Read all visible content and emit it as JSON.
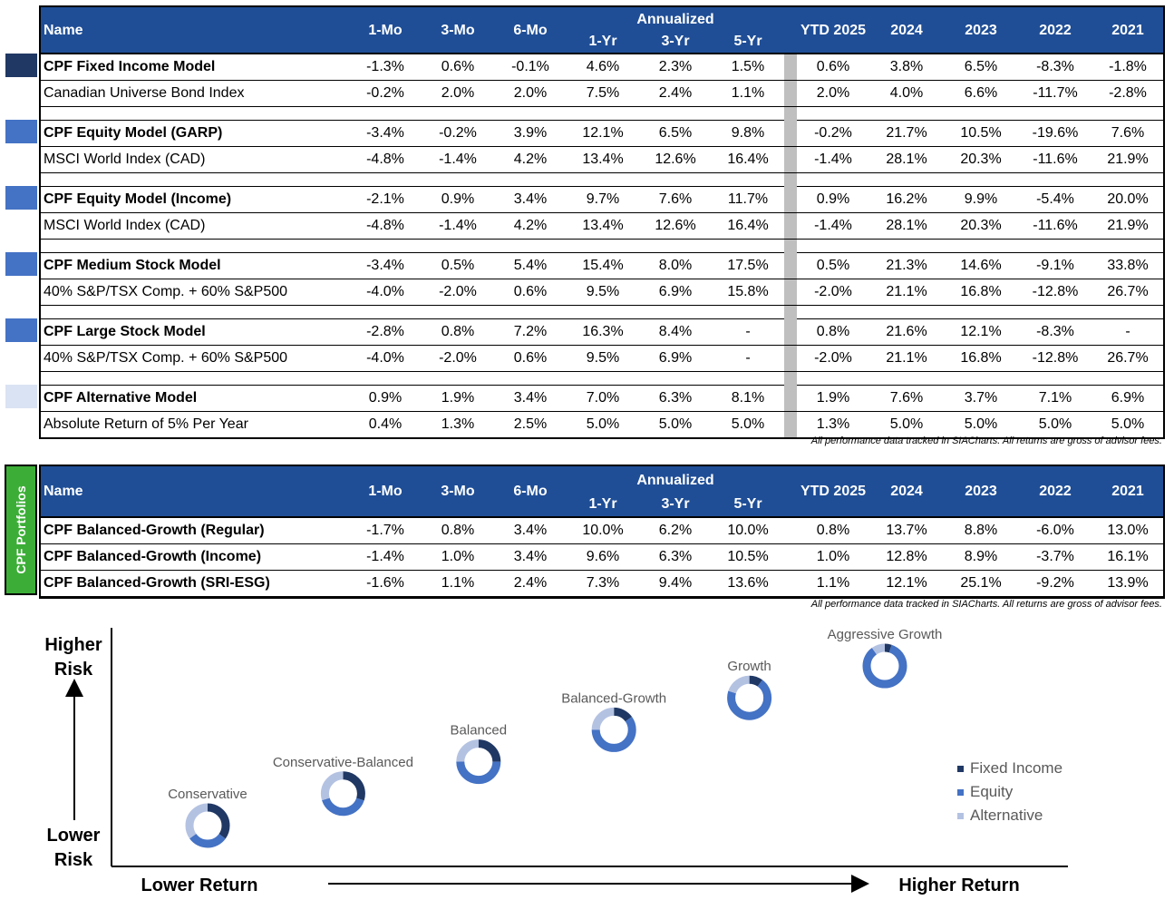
{
  "colors": {
    "header_bg": "#1f4e96",
    "sidebar_bg": "#3cae37",
    "fixed_income": "#203864",
    "equity": "#4472c4",
    "alternative": "#b4c2e2",
    "alternative_light": "#dae3f3"
  },
  "columns": {
    "name": "Name",
    "m1": "1-Mo",
    "m3": "3-Mo",
    "m6": "6-Mo",
    "annualized": "Annualized",
    "y1": "1-Yr",
    "y3": "3-Yr",
    "y5": "5-Yr",
    "ytd": "YTD 2025",
    "c2024": "2024",
    "c2023": "2023",
    "c2022": "2022",
    "c2021": "2021"
  },
  "models_table": {
    "groups": [
      {
        "swatch_color": "#203864",
        "rows": [
          {
            "name": "CPF Fixed Income Model",
            "bold": true,
            "values": [
              "-1.3%",
              "0.6%",
              "-0.1%",
              "4.6%",
              "2.3%",
              "1.5%",
              "0.6%",
              "3.8%",
              "6.5%",
              "-8.3%",
              "-1.8%"
            ]
          },
          {
            "name": "Canadian Universe Bond Index",
            "bold": false,
            "values": [
              "-0.2%",
              "2.0%",
              "2.0%",
              "7.5%",
              "2.4%",
              "1.1%",
              "2.0%",
              "4.0%",
              "6.6%",
              "-11.7%",
              "-2.8%"
            ]
          }
        ]
      },
      {
        "swatch_color": "#4472c4",
        "rows": [
          {
            "name": "CPF Equity Model (GARP)",
            "bold": true,
            "values": [
              "-3.4%",
              "-0.2%",
              "3.9%",
              "12.1%",
              "6.5%",
              "9.8%",
              "-0.2%",
              "21.7%",
              "10.5%",
              "-19.6%",
              "7.6%"
            ]
          },
          {
            "name": "MSCI World Index (CAD)",
            "bold": false,
            "values": [
              "-4.8%",
              "-1.4%",
              "4.2%",
              "13.4%",
              "12.6%",
              "16.4%",
              "-1.4%",
              "28.1%",
              "20.3%",
              "-11.6%",
              "21.9%"
            ]
          }
        ]
      },
      {
        "swatch_color": "#4472c4",
        "rows": [
          {
            "name": "CPF Equity Model (Income)",
            "bold": true,
            "values": [
              "-2.1%",
              "0.9%",
              "3.4%",
              "9.7%",
              "7.6%",
              "11.7%",
              "0.9%",
              "16.2%",
              "9.9%",
              "-5.4%",
              "20.0%"
            ]
          },
          {
            "name": "MSCI World Index (CAD)",
            "bold": false,
            "values": [
              "-4.8%",
              "-1.4%",
              "4.2%",
              "13.4%",
              "12.6%",
              "16.4%",
              "-1.4%",
              "28.1%",
              "20.3%",
              "-11.6%",
              "21.9%"
            ]
          }
        ]
      },
      {
        "swatch_color": "#4472c4",
        "rows": [
          {
            "name": "CPF Medium Stock Model",
            "bold": true,
            "values": [
              "-3.4%",
              "0.5%",
              "5.4%",
              "15.4%",
              "8.0%",
              "17.5%",
              "0.5%",
              "21.3%",
              "14.6%",
              "-9.1%",
              "33.8%"
            ]
          },
          {
            "name": "40% S&P/TSX Comp. + 60% S&P500",
            "bold": false,
            "values": [
              "-4.0%",
              "-2.0%",
              "0.6%",
              "9.5%",
              "6.9%",
              "15.8%",
              "-2.0%",
              "21.1%",
              "16.8%",
              "-12.8%",
              "26.7%"
            ]
          }
        ]
      },
      {
        "swatch_color": "#4472c4",
        "rows": [
          {
            "name": "CPF Large Stock Model",
            "bold": true,
            "values": [
              "-2.8%",
              "0.8%",
              "7.2%",
              "16.3%",
              "8.4%",
              "-",
              "0.8%",
              "21.6%",
              "12.1%",
              "-8.3%",
              "-"
            ]
          },
          {
            "name": "40% S&P/TSX Comp. + 60% S&P500",
            "bold": false,
            "values": [
              "-4.0%",
              "-2.0%",
              "0.6%",
              "9.5%",
              "6.9%",
              "-",
              "-2.0%",
              "21.1%",
              "16.8%",
              "-12.8%",
              "26.7%"
            ]
          }
        ]
      },
      {
        "swatch_color": "#dae3f3",
        "rows": [
          {
            "name": "CPF Alternative Model",
            "bold": true,
            "values": [
              "0.9%",
              "1.9%",
              "3.4%",
              "7.0%",
              "6.3%",
              "8.1%",
              "1.9%",
              "7.6%",
              "3.7%",
              "7.1%",
              "6.9%"
            ]
          },
          {
            "name": "Absolute Return of 5% Per Year",
            "bold": false,
            "values": [
              "0.4%",
              "1.3%",
              "2.5%",
              "5.0%",
              "5.0%",
              "5.0%",
              "1.3%",
              "5.0%",
              "5.0%",
              "5.0%",
              "5.0%"
            ]
          }
        ]
      }
    ],
    "footnote": "All performance data tracked in SIACharts. All returns are gross of advisor fees."
  },
  "portfolios_table": {
    "sidebar_label": "CPF Portfolios",
    "rows": [
      {
        "name": "CPF Balanced-Growth (Regular)",
        "values": [
          "-1.7%",
          "0.8%",
          "3.4%",
          "10.0%",
          "6.2%",
          "10.0%",
          "0.8%",
          "13.7%",
          "8.8%",
          "-6.0%",
          "13.0%"
        ]
      },
      {
        "name": "CPF Balanced-Growth (Income)",
        "values": [
          "-1.4%",
          "1.0%",
          "3.4%",
          "9.6%",
          "6.3%",
          "10.5%",
          "1.0%",
          "12.8%",
          "8.9%",
          "-3.7%",
          "16.1%"
        ]
      },
      {
        "name": "CPF Balanced-Growth (SRI-ESG)",
        "values": [
          "-1.6%",
          "1.1%",
          "2.4%",
          "7.3%",
          "9.4%",
          "13.6%",
          "1.1%",
          "12.1%",
          "25.1%",
          "-9.2%",
          "13.9%"
        ]
      }
    ],
    "footnote": "All performance data tracked in SIACharts. All returns are gross of advisor fees."
  },
  "chart_data": {
    "type": "scatter",
    "title": "",
    "xlabel_low": "Lower Return",
    "xlabel_high": "Higher Return",
    "ylabel_high": "Higher Risk",
    "ylabel_low": "Lower Risk",
    "legend": [
      "Fixed Income",
      "Equity",
      "Alternative"
    ],
    "legend_position": "right",
    "grid": false,
    "points": [
      {
        "name": "Conservative",
        "x": 1,
        "y": 1,
        "allocation": [
          0.35,
          0.3,
          0.35
        ]
      },
      {
        "name": "Conservative-Balanced",
        "x": 2,
        "y": 2,
        "allocation": [
          0.3,
          0.4,
          0.3
        ]
      },
      {
        "name": "Balanced",
        "x": 3,
        "y": 3,
        "allocation": [
          0.25,
          0.5,
          0.25
        ]
      },
      {
        "name": "Balanced-Growth",
        "x": 4,
        "y": 4,
        "allocation": [
          0.15,
          0.6,
          0.25
        ]
      },
      {
        "name": "Growth",
        "x": 5,
        "y": 5,
        "allocation": [
          0.1,
          0.7,
          0.2
        ]
      },
      {
        "name": "Aggressive Growth",
        "x": 6,
        "y": 6,
        "allocation": [
          0.05,
          0.85,
          0.1
        ]
      }
    ]
  }
}
